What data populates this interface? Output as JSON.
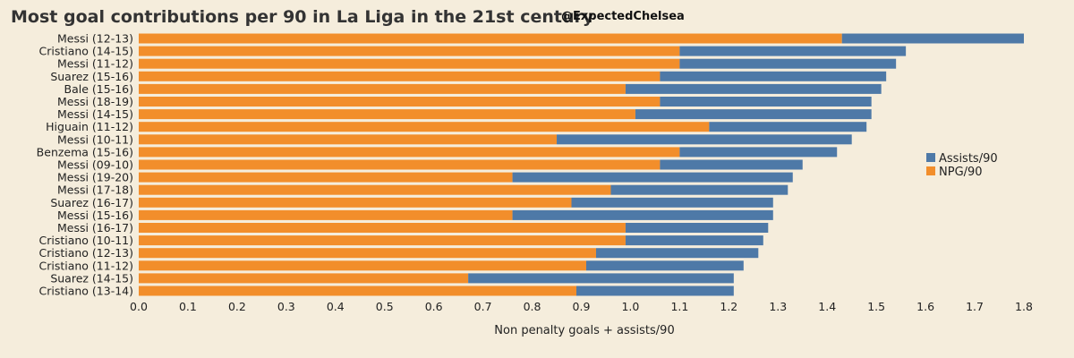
{
  "chart_data": {
    "type": "bar",
    "orientation": "horizontal",
    "stacked": true,
    "title": "Most goal contributions per 90 in La Liga in the 21st century",
    "handle": "@ExpectedChelsea",
    "xlabel": "Non penalty goals + assists/90",
    "ylabel": "",
    "xlim": [
      0,
      1.8
    ],
    "xticks": [
      "0.0",
      "0.1",
      "0.2",
      "0.3",
      "0.4",
      "0.5",
      "0.6",
      "0.7",
      "0.8",
      "0.9",
      "1.0",
      "1.1",
      "1.2",
      "1.3",
      "1.4",
      "1.5",
      "1.6",
      "1.7",
      "1.8"
    ],
    "grid": false,
    "legend_position": "right",
    "categories": [
      "Messi (12-13)",
      "Cristiano (14-15)",
      "Messi (11-12)",
      "Suarez (15-16)",
      "Bale (15-16)",
      "Messi (18-19)",
      "Messi (14-15)",
      "Higuain (11-12)",
      "Messi (10-11)",
      "Benzema (15-16)",
      "Messi (09-10)",
      "Messi (19-20)",
      "Messi (17-18)",
      "Suarez (16-17)",
      "Messi (15-16)",
      "Messi (16-17)",
      "Cristiano (10-11)",
      "Cristiano (12-13)",
      "Cristiano (11-12)",
      "Suarez (14-15)",
      "Cristiano (13-14)"
    ],
    "series": [
      {
        "name": "NPG/90",
        "color": "#f28e2b",
        "values": [
          1.43,
          1.1,
          1.1,
          1.06,
          0.99,
          1.06,
          1.01,
          1.16,
          0.85,
          1.1,
          1.06,
          0.76,
          0.96,
          0.88,
          0.76,
          0.99,
          0.99,
          0.93,
          0.91,
          0.67,
          0.89
        ]
      },
      {
        "name": "Assists/90",
        "color": "#4e79a7",
        "values": [
          0.37,
          0.46,
          0.44,
          0.46,
          0.52,
          0.43,
          0.48,
          0.32,
          0.6,
          0.32,
          0.29,
          0.57,
          0.36,
          0.41,
          0.53,
          0.29,
          0.28,
          0.33,
          0.32,
          0.54,
          0.32
        ]
      }
    ],
    "legend": [
      {
        "label": "Assists/90",
        "color": "#4e79a7"
      },
      {
        "label": "NPG/90",
        "color": "#f28e2b"
      }
    ]
  }
}
